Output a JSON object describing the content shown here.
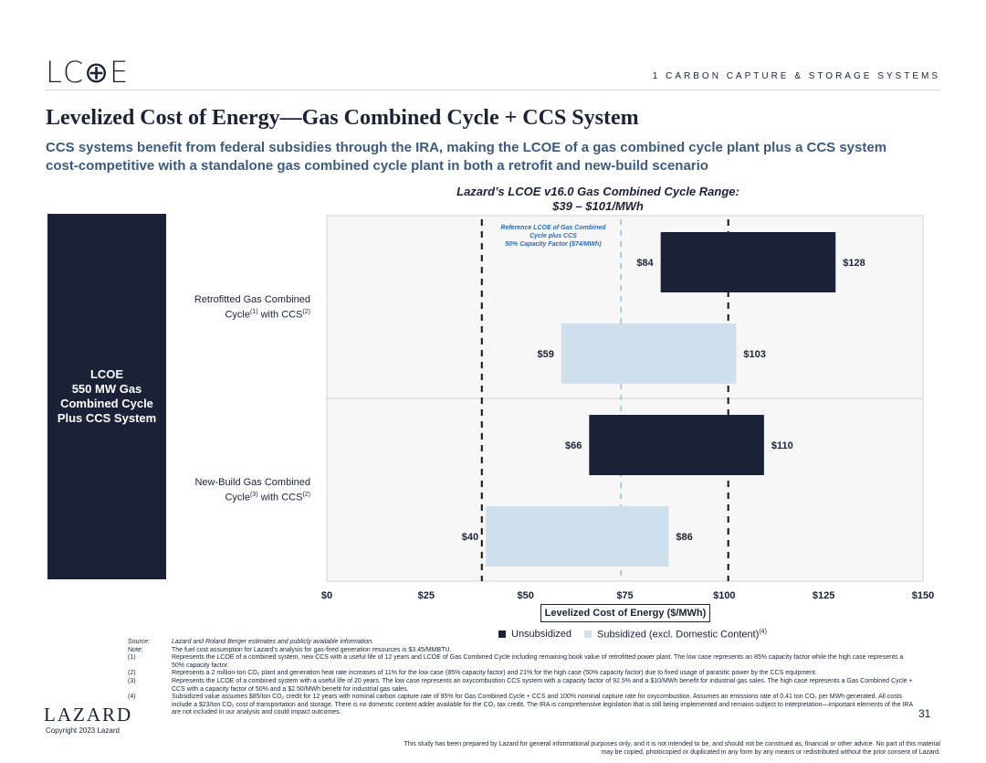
{
  "header": {
    "logo": "LC⊕E",
    "section": "1   CARBON CAPTURE & STORAGE SYSTEMS"
  },
  "title": "Levelized Cost of Energy—Gas Combined Cycle + CCS System",
  "subtitle": "CCS systems benefit from federal subsidies through the IRA, making the LCOE of a gas combined cycle plant plus a CCS system cost-competitive with a standalone gas combined cycle plant in both a retrofit and new-build scenario",
  "range_title_line1": "Lazard’s LCOE v16.0 Gas Combined Cycle Range:",
  "range_title_line2": "$39 – $101/MWh",
  "side_box": {
    "line1": "LCOE",
    "line2": "550 MW Gas",
    "line3": "Combined Cycle",
    "line4": "Plus CCS System"
  },
  "rows": [
    {
      "label_line1": "Retrofitted Gas Combined",
      "label_line2a": "Cycle",
      "sup1": "(1)",
      "label_line2b": " with CCS",
      "sup2": "(2)"
    },
    {
      "label_line1": "New-Build Gas Combined",
      "label_line2a": "Cycle",
      "sup1": "(3)",
      "label_line2b": " with CCS",
      "sup2": "(2)"
    }
  ],
  "chart_data": {
    "type": "bar",
    "orientation": "horizontal-floating",
    "xlabel": "Levelized Cost of Energy ($/MWh)",
    "xlim": [
      0,
      150
    ],
    "xticks": [
      0,
      25,
      50,
      75,
      100,
      125,
      150
    ],
    "xtick_labels": [
      "$0",
      "$25",
      "$50",
      "$75",
      "$100",
      "$125",
      "$150"
    ],
    "categories": [
      "Retrofitted Gas Combined Cycle with CCS",
      "New-Build Gas Combined Cycle with CCS"
    ],
    "series": [
      {
        "name": "Unsubsidized",
        "color": "#1b2238",
        "ranges": [
          [
            84,
            128
          ],
          [
            66,
            110
          ]
        ],
        "low_labels": [
          "$84",
          "$66"
        ],
        "high_labels": [
          "$128",
          "$110"
        ]
      },
      {
        "name": "Subsidized (excl. Domestic Content)",
        "color": "#cfdfec",
        "ranges": [
          [
            59,
            103
          ],
          [
            40,
            86
          ]
        ],
        "low_labels": [
          "$59",
          "$40"
        ],
        "high_labels": [
          "$103",
          "$86"
        ]
      }
    ],
    "reference_lines": [
      {
        "value": 39,
        "style": "black-dashed"
      },
      {
        "value": 101,
        "style": "black-dashed"
      },
      {
        "value": 74,
        "style": "blue-dashed",
        "label": [
          "Reference LCOE of Gas Combined",
          "Cycle plus CCS",
          "50% Capacity Factor ($74/MWh)"
        ]
      }
    ],
    "legend_placement": "bottom"
  },
  "legend": {
    "unsubsidized": "Unsubsidized",
    "subsidized": "Subsidized (excl. Domestic Content)",
    "subsidized_sup": "(4)"
  },
  "notes": [
    {
      "key": "Source:",
      "text": "Lazard and Roland Berger estimates and publicly available information.",
      "italic": true
    },
    {
      "key": "Note:",
      "text": "The fuel cost assumption for Lazard’s analysis for gas-fired generation resources is $3.45/MMBTU."
    },
    {
      "key": "(1)",
      "text": "Represents the LCOE of a combined system, new CCS with a useful life of 12 years and LCOE of Gas Combined Cycle including remaining book value of retrofitted power plant. The low case represents an 85% capacity factor while the high case represents a 50% capacity factor."
    },
    {
      "key": "(2)",
      "text": "Represents a 2 million-ton CO₂ plant and generation heat rate increases of 11% for the low case (85% capacity factor) and 21% for the high case (50% capacity factor) due to fixed usage of parasitic power by the CCS equipment."
    },
    {
      "key": "(3)",
      "text": "Represents the LCOE of a combined system with a useful life of 20 years. The low case represents an oxycombustion CCS system with a capacity factor of 92.5% and a $10/MWh benefit for industrial gas sales. The high case represents a Gas Combined Cycle + CCS with a capacity factor of 50% and a $2.50/MWh benefit for industrial gas sales."
    },
    {
      "key": "(4)",
      "text": "Subsidized value assumes $85/ton CO₂ credit for 12 years with nominal carbon capture rate of 95% for Gas Combined Cycle + CCS and 100% nominal capture rate for oxycombustion. Assumes an emissions rate of 0.41 ton CO₂ per MWh generated. All costs include a $23/ton CO₂ cost of transportation and storage. There is no domestic content adder available for the CO₂ tax credit. The IRA is comprehensive legislation that is still being implemented and remains subject to interpretation—important elements of the IRA are not included in our analysis and could impact outcomes."
    }
  ],
  "footer": {
    "lazard": "LAZARD",
    "copyright": "Copyright 2023 Lazard",
    "page_number": "31",
    "disclaimer": "This study has been prepared by Lazard for general informational purposes only, and it is not intended to be, and should not be construed as, financial or other advice. No part of this material may be copied, photocopied or duplicated in any form by any means or redistributed without the prior consent of Lazard."
  }
}
